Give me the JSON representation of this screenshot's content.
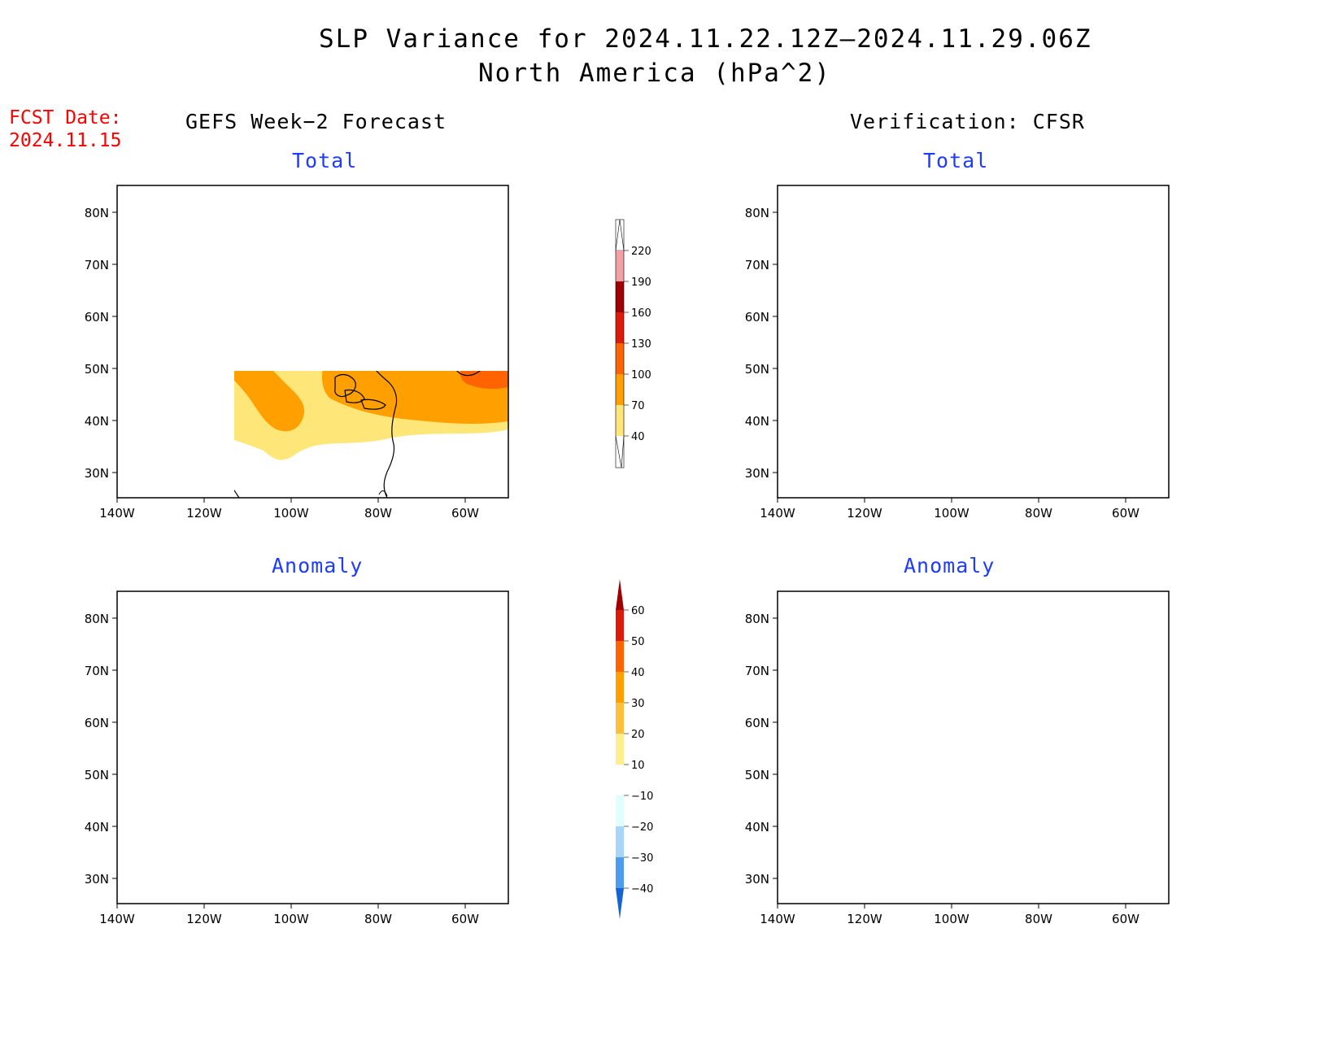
{
  "header": {
    "title_line1": "SLP Variance for 2024.11.22.12Z—2024.11.29.06Z",
    "title_line2": "North America (hPa^2)",
    "fcst_label": "FCST Date:",
    "fcst_date": "2024.11.15"
  },
  "columns": {
    "left_title": "GEFS Week−2 Forecast",
    "right_title": "Verification: CFSR"
  },
  "panels": {
    "forecast_total": "Total",
    "verif_total": "Total",
    "forecast_anomaly": "Anomaly",
    "verif_anomaly": "Anomaly"
  },
  "map_axes": {
    "lon_labels": [
      "140W",
      "120W",
      "100W",
      "80W",
      "60W"
    ],
    "lat_labels": [
      "80N",
      "70N",
      "60N",
      "50N",
      "40N",
      "30N"
    ]
  },
  "colorbars": {
    "total": {
      "labels": [
        "220",
        "190",
        "160",
        "130",
        "100",
        "70",
        "40"
      ],
      "colors": [
        "#ffffff",
        "#f2a0a6",
        "#a00000",
        "#de1a0a",
        "#ff6400",
        "#ffa000",
        "#ffe678"
      ]
    },
    "anomaly": {
      "labels": [
        "60",
        "50",
        "40",
        "30",
        "20",
        "10",
        "−10",
        "−20",
        "−30",
        "−40"
      ],
      "colors": [
        "#a00000",
        "#de1a0a",
        "#ff6400",
        "#ffa000",
        "#ffbe3c",
        "#ffee90",
        "#ffffff",
        "#e0ffff",
        "#a8d6fa",
        "#4c9cf0",
        "#1464d2"
      ]
    }
  }
}
